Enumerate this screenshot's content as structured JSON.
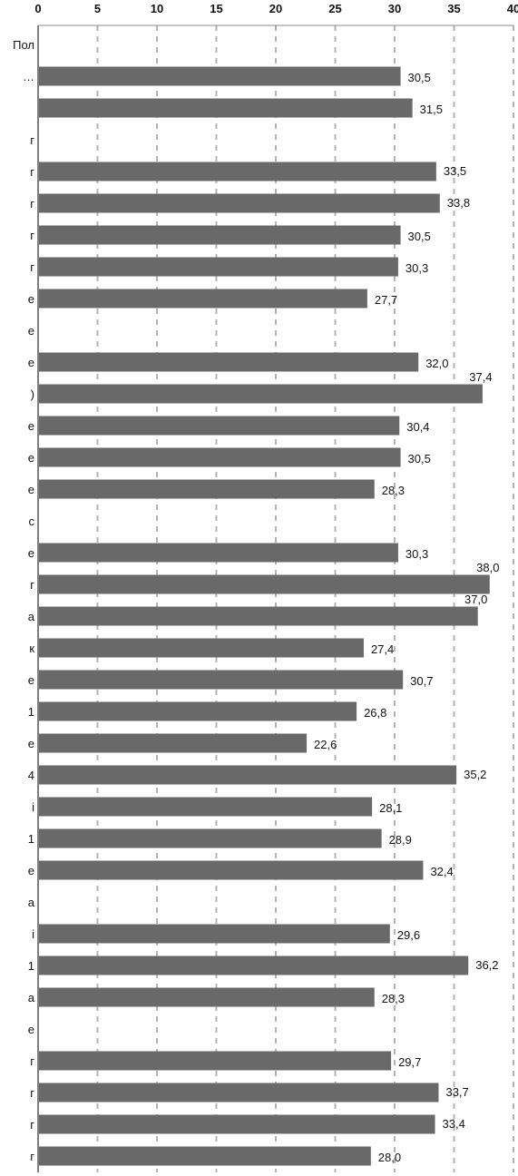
{
  "chart_data": {
    "type": "bar",
    "orientation": "horizontal",
    "xlim": [
      0,
      40
    ],
    "x_ticks": [
      "0",
      "5",
      "10",
      "15",
      "20",
      "25",
      "30",
      "35",
      "40"
    ],
    "grid": true,
    "bar_color": "#696969",
    "categories": [
      "Пол",
      "…",
      "",
      "г",
      "г",
      "г",
      "г",
      "г",
      "е",
      "е",
      "е",
      ")",
      "е",
      "е",
      "е",
      "с",
      "е",
      "г",
      "а",
      "к",
      "е",
      "1",
      "е",
      "4",
      "і",
      "1",
      "е",
      "а",
      "і",
      "1",
      "а",
      "е",
      "г",
      "г",
      "г",
      "г"
    ],
    "values": [
      null,
      30.5,
      31.5,
      null,
      33.5,
      33.8,
      30.5,
      30.3,
      27.7,
      null,
      32.0,
      37.4,
      30.4,
      30.5,
      28.3,
      null,
      30.3,
      38.0,
      37.0,
      27.4,
      30.7,
      26.8,
      22.6,
      35.2,
      28.1,
      28.9,
      32.4,
      null,
      29.6,
      36.2,
      28.3,
      null,
      29.7,
      33.7,
      33.4,
      28.0
    ],
    "value_labels": [
      "",
      "30,5",
      "31,5",
      "",
      "33,5",
      "33,8",
      "30,5",
      "30,3",
      "27,7",
      "",
      "32,0",
      "37,4",
      "30,4",
      "30,5",
      "28,3",
      "",
      "30,3",
      "38,0",
      "37,0",
      "27,4",
      "30,7",
      "26,8",
      "22,6",
      "35,2",
      "28,1",
      "28,9",
      "32,4",
      "",
      "29,6",
      "36,2",
      "28,3",
      "",
      "29,7",
      "33,7",
      "33,4",
      "28,0"
    ]
  }
}
